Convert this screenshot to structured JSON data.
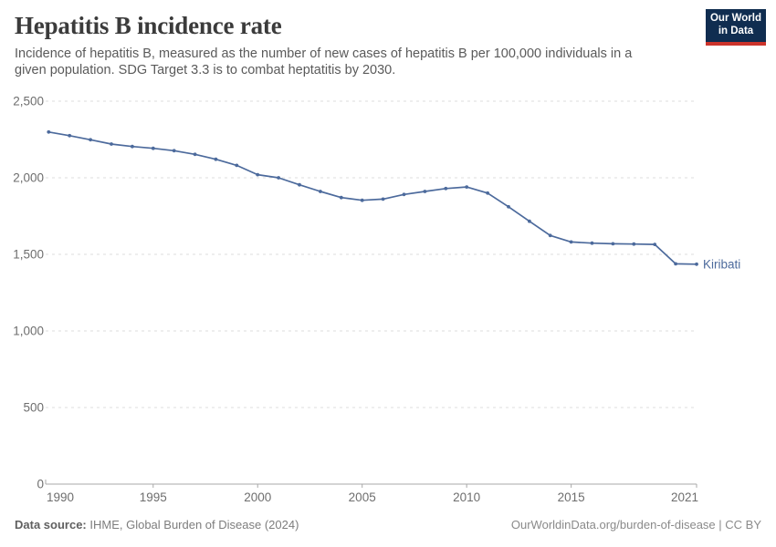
{
  "header": {
    "title": "Hepatitis B incidence rate",
    "subtitle": "Incidence of hepatitis B, measured as the number of new cases of hepatitis B per 100,000 individuals in a given population. SDG Target 3.3 is to combat heptatitis by 2030."
  },
  "logo": {
    "line1": "Our World",
    "line2": "in Data",
    "bg_color": "#102d50",
    "accent_color": "#cc342b"
  },
  "chart_data": {
    "type": "line",
    "title": "Hepatitis B incidence rate",
    "xlabel": "",
    "ylabel": "",
    "xlim": [
      1990,
      2021
    ],
    "ylim": [
      0,
      2500
    ],
    "grid": "horizontal-dashed",
    "legend_position": "end-of-line",
    "x_tick_values": [
      1990,
      1995,
      2000,
      2005,
      2010,
      2015,
      2021
    ],
    "x_tick_labels": [
      "1990",
      "1995",
      "2000",
      "2005",
      "2010",
      "2015",
      "2021"
    ],
    "y_tick_values": [
      0,
      500,
      1000,
      1500,
      2000,
      2500
    ],
    "y_tick_labels": [
      "0",
      "500",
      "1,000",
      "1,500",
      "2,000",
      "2,500"
    ],
    "series": [
      {
        "name": "Kiribati",
        "color": "#4c6a9c",
        "x": [
          1990,
          1991,
          1992,
          1993,
          1994,
          1995,
          1996,
          1997,
          1998,
          1999,
          2000,
          2001,
          2002,
          2003,
          2004,
          2005,
          2006,
          2007,
          2008,
          2009,
          2010,
          2011,
          2012,
          2013,
          2014,
          2015,
          2016,
          2017,
          2018,
          2019,
          2020,
          2021
        ],
        "values": [
          2299,
          2275,
          2248,
          2220,
          2204,
          2192,
          2177,
          2153,
          2121,
          2081,
          2020,
          2000,
          1954,
          1911,
          1871,
          1853,
          1861,
          1891,
          1911,
          1930,
          1940,
          1900,
          1811,
          1716,
          1623,
          1581,
          1573,
          1569,
          1567,
          1565,
          1438,
          1436
        ]
      }
    ],
    "colors": {
      "gridline": "#dcdcdc",
      "axis": "#a8a8a8",
      "tick_label": "#6e6e6e"
    }
  },
  "footer": {
    "source_label": "Data source:",
    "source_value": " IHME, Global Burden of Disease (2024)",
    "site": "OurWorldinData.org/burden-of-disease",
    "separator": " | ",
    "license": "CC BY"
  }
}
